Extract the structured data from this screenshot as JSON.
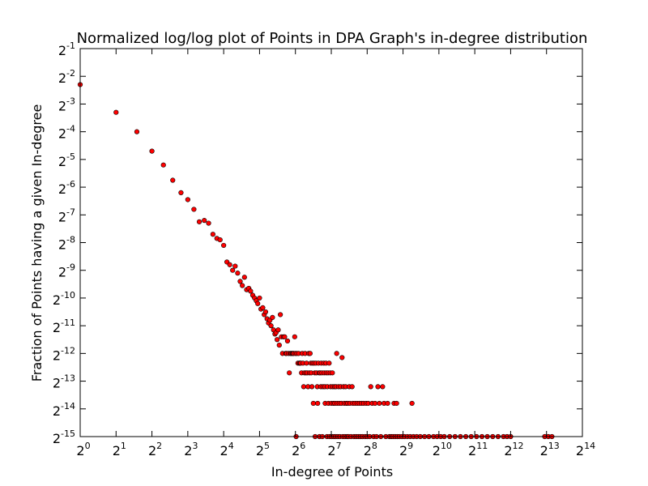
{
  "chart_data": {
    "type": "scatter",
    "title": "Normalized log/log plot of Points in DPA Graph's in-degree distribution",
    "xlabel": "In-degree of Points",
    "ylabel": "Fraction of Points having a given In-degree",
    "x_scale": "log2",
    "y_scale": "log2",
    "xlim_exp": [
      0,
      14
    ],
    "ylim_exp": [
      -15,
      -1
    ],
    "x_ticks": [
      0,
      1,
      2,
      3,
      4,
      5,
      6,
      7,
      8,
      9,
      10,
      11,
      12,
      13,
      14
    ],
    "y_ticks": [
      -1,
      -2,
      -3,
      -4,
      -5,
      -6,
      -7,
      -8,
      -9,
      -10,
      -11,
      -12,
      -13,
      -14,
      -15
    ],
    "tick_base": "2",
    "grid": false,
    "legend": "none",
    "marker_color": "#ff0000",
    "marker_edge": "#000000",
    "points_log2": [
      [
        0,
        -2.3
      ],
      [
        1,
        -3.3
      ],
      [
        1.58,
        -4.0
      ],
      [
        2.0,
        -4.7
      ],
      [
        2.32,
        -5.2
      ],
      [
        2.58,
        -5.75
      ],
      [
        2.81,
        -6.2
      ],
      [
        3.0,
        -6.45
      ],
      [
        3.17,
        -6.8
      ],
      [
        3.32,
        -7.25
      ],
      [
        3.46,
        -7.2
      ],
      [
        3.58,
        -7.3
      ],
      [
        3.7,
        -7.7
      ],
      [
        3.81,
        -7.85
      ],
      [
        3.9,
        -7.9
      ],
      [
        4.0,
        -8.1
      ],
      [
        4.09,
        -8.7
      ],
      [
        4.17,
        -8.8
      ],
      [
        4.25,
        -9.0
      ],
      [
        4.32,
        -8.85
      ],
      [
        4.39,
        -9.1
      ],
      [
        4.46,
        -9.4
      ],
      [
        4.52,
        -9.55
      ],
      [
        4.58,
        -9.25
      ],
      [
        4.64,
        -9.7
      ],
      [
        4.7,
        -9.65
      ],
      [
        4.75,
        -9.75
      ],
      [
        4.81,
        -9.9
      ],
      [
        4.86,
        -10.0
      ],
      [
        4.91,
        -10.1
      ],
      [
        4.95,
        -10.2
      ],
      [
        5.0,
        -10.0
      ],
      [
        5.04,
        -10.4
      ],
      [
        5.09,
        -10.35
      ],
      [
        5.13,
        -10.6
      ],
      [
        5.17,
        -10.5
      ],
      [
        5.21,
        -10.75
      ],
      [
        5.25,
        -10.9
      ],
      [
        5.29,
        -10.8
      ],
      [
        5.32,
        -11.0
      ],
      [
        5.36,
        -10.7
      ],
      [
        5.39,
        -11.15
      ],
      [
        5.43,
        -11.3
      ],
      [
        5.46,
        -11.25
      ],
      [
        5.49,
        -11.5
      ],
      [
        5.52,
        -11.15
      ],
      [
        5.55,
        -11.7
      ],
      [
        5.58,
        -10.6
      ],
      [
        5.61,
        -11.4
      ],
      [
        5.64,
        -12.0
      ],
      [
        5.67,
        -11.4
      ],
      [
        5.7,
        -11.4
      ],
      [
        5.73,
        -12.0
      ],
      [
        5.75,
        -12.0
      ],
      [
        5.78,
        -11.55
      ],
      [
        5.81,
        -12.0
      ],
      [
        5.83,
        -12.7
      ],
      [
        5.86,
        -12.0
      ],
      [
        5.88,
        -12.0
      ],
      [
        5.91,
        -12.0
      ],
      [
        5.93,
        -12.0
      ],
      [
        5.95,
        -12.0
      ],
      [
        5.98,
        -11.4
      ],
      [
        6.0,
        -12.0
      ],
      [
        6.02,
        -15.0
      ],
      [
        6.04,
        -12.0
      ],
      [
        6.07,
        -12.35
      ],
      [
        6.09,
        -12.0
      ],
      [
        6.11,
        -12.35
      ],
      [
        6.13,
        -12.35
      ],
      [
        6.15,
        -12.35
      ],
      [
        6.17,
        -12.7
      ],
      [
        6.19,
        -12.0
      ],
      [
        6.21,
        -12.35
      ],
      [
        6.23,
        -13.2
      ],
      [
        6.25,
        -12.7
      ],
      [
        6.27,
        -12.0
      ],
      [
        6.29,
        -12.7
      ],
      [
        6.31,
        -12.35
      ],
      [
        6.33,
        -12.7
      ],
      [
        6.35,
        -13.2
      ],
      [
        6.37,
        -12.0
      ],
      [
        6.39,
        -12.7
      ],
      [
        6.41,
        -12.0
      ],
      [
        6.43,
        -12.35
      ],
      [
        6.44,
        -12.7
      ],
      [
        6.46,
        -13.2
      ],
      [
        6.48,
        -12.35
      ],
      [
        6.5,
        -13.8
      ],
      [
        6.52,
        -12.35
      ],
      [
        6.54,
        -12.7
      ],
      [
        6.55,
        -15.0
      ],
      [
        6.57,
        -12.35
      ],
      [
        6.59,
        -12.7
      ],
      [
        6.61,
        -13.2
      ],
      [
        6.62,
        -13.8
      ],
      [
        6.64,
        -12.35
      ],
      [
        6.66,
        -12.7
      ],
      [
        6.67,
        -15.0
      ],
      [
        6.69,
        -12.7
      ],
      [
        6.71,
        -13.2
      ],
      [
        6.72,
        -12.35
      ],
      [
        6.74,
        -12.7
      ],
      [
        6.75,
        -15.0
      ],
      [
        6.77,
        -13.2
      ],
      [
        6.79,
        -12.35
      ],
      [
        6.8,
        -12.7
      ],
      [
        6.82,
        -13.2
      ],
      [
        6.83,
        -13.8
      ],
      [
        6.85,
        -12.35
      ],
      [
        6.86,
        -12.7
      ],
      [
        6.88,
        -15.0
      ],
      [
        6.89,
        -13.2
      ],
      [
        6.91,
        -12.7
      ],
      [
        6.92,
        -13.8
      ],
      [
        6.94,
        -12.35
      ],
      [
        6.95,
        -15.0
      ],
      [
        6.97,
        -12.7
      ],
      [
        6.98,
        -13.2
      ],
      [
        7.0,
        -13.8
      ],
      [
        7.01,
        -15.0
      ],
      [
        7.03,
        -12.7
      ],
      [
        7.04,
        -13.2
      ],
      [
        7.06,
        -13.8
      ],
      [
        7.07,
        -15.0
      ],
      [
        7.09,
        -13.2
      ],
      [
        7.1,
        -13.8
      ],
      [
        7.12,
        -15.0
      ],
      [
        7.13,
        -13.2
      ],
      [
        7.15,
        -12.0
      ],
      [
        7.16,
        -13.8
      ],
      [
        7.18,
        -15.0
      ],
      [
        7.2,
        -13.2
      ],
      [
        7.22,
        -13.8
      ],
      [
        7.24,
        -15.0
      ],
      [
        7.26,
        -13.2
      ],
      [
        7.28,
        -13.8
      ],
      [
        7.3,
        -12.15
      ],
      [
        7.32,
        -15.0
      ],
      [
        7.34,
        -13.2
      ],
      [
        7.36,
        -13.8
      ],
      [
        7.38,
        -15.0
      ],
      [
        7.4,
        -13.2
      ],
      [
        7.42,
        -13.8
      ],
      [
        7.44,
        -15.0
      ],
      [
        7.46,
        -13.8
      ],
      [
        7.48,
        -15.0
      ],
      [
        7.5,
        -13.2
      ],
      [
        7.52,
        -13.8
      ],
      [
        7.55,
        -15.0
      ],
      [
        7.58,
        -13.2
      ],
      [
        7.6,
        -13.8
      ],
      [
        7.63,
        -15.0
      ],
      [
        7.66,
        -13.8
      ],
      [
        7.69,
        -15.0
      ],
      [
        7.72,
        -13.8
      ],
      [
        7.75,
        -15.0
      ],
      [
        7.78,
        -13.8
      ],
      [
        7.81,
        -15.0
      ],
      [
        7.84,
        -13.8
      ],
      [
        7.87,
        -15.0
      ],
      [
        7.9,
        -13.8
      ],
      [
        7.94,
        -15.0
      ],
      [
        7.97,
        -13.8
      ],
      [
        8.0,
        -15.0
      ],
      [
        8.03,
        -13.8
      ],
      [
        8.07,
        -15.0
      ],
      [
        8.1,
        -13.2
      ],
      [
        8.14,
        -13.8
      ],
      [
        8.18,
        -15.0
      ],
      [
        8.22,
        -13.8
      ],
      [
        8.26,
        -15.0
      ],
      [
        8.3,
        -13.2
      ],
      [
        8.34,
        -13.8
      ],
      [
        8.38,
        -15.0
      ],
      [
        8.43,
        -13.2
      ],
      [
        8.47,
        -13.8
      ],
      [
        8.52,
        -15.0
      ],
      [
        8.57,
        -13.8
      ],
      [
        8.62,
        -15.0
      ],
      [
        8.67,
        -15.0
      ],
      [
        8.72,
        -15.0
      ],
      [
        8.75,
        -13.8
      ],
      [
        8.78,
        -15.0
      ],
      [
        8.82,
        -13.8
      ],
      [
        8.84,
        -15.0
      ],
      [
        8.9,
        -15.0
      ],
      [
        8.97,
        -15.0
      ],
      [
        9.04,
        -15.0
      ],
      [
        9.12,
        -15.0
      ],
      [
        9.2,
        -15.0
      ],
      [
        9.25,
        -13.8
      ],
      [
        9.29,
        -15.0
      ],
      [
        9.38,
        -15.0
      ],
      [
        9.48,
        -15.0
      ],
      [
        9.6,
        -15.0
      ],
      [
        9.72,
        -15.0
      ],
      [
        9.85,
        -15.0
      ],
      [
        9.95,
        -15.0
      ],
      [
        10.05,
        -15.0
      ],
      [
        10.15,
        -15.0
      ],
      [
        10.3,
        -15.0
      ],
      [
        10.45,
        -15.0
      ],
      [
        10.6,
        -15.0
      ],
      [
        10.75,
        -15.0
      ],
      [
        10.9,
        -15.0
      ],
      [
        11.05,
        -15.0
      ],
      [
        11.2,
        -15.0
      ],
      [
        11.35,
        -15.0
      ],
      [
        11.5,
        -15.0
      ],
      [
        11.65,
        -15.0
      ],
      [
        11.8,
        -15.0
      ],
      [
        11.9,
        -15.0
      ],
      [
        12.0,
        -15.0
      ],
      [
        12.95,
        -15.0
      ],
      [
        13.05,
        -15.0
      ],
      [
        13.15,
        -15.0
      ]
    ]
  }
}
